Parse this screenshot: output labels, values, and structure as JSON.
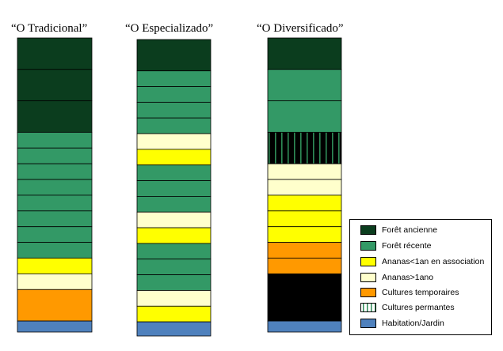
{
  "colors": {
    "foret_ancienne": "#0b3d1e",
    "foret_recente": "#339966",
    "ananas_assoc": "#ffff00",
    "ananas_1ano": "#ffffcc",
    "cultures_temporaires": "#ff9900",
    "cultures_permanentes": "#000000",
    "habitation": "#4f81bd"
  },
  "columns": [
    {
      "title": "“O Tradicional”",
      "blocks": [
        {
          "type": "foret_ancienne",
          "units": 2.0
        },
        {
          "type": "foret_ancienne",
          "units": 2.0
        },
        {
          "type": "foret_ancienne",
          "units": 2.0
        },
        {
          "type": "foret_recente",
          "units": 1.0
        },
        {
          "type": "foret_recente",
          "units": 1.0
        },
        {
          "type": "foret_recente",
          "units": 1.0
        },
        {
          "type": "foret_recente",
          "units": 1.0
        },
        {
          "type": "foret_recente",
          "units": 1.0
        },
        {
          "type": "foret_recente",
          "units": 1.0
        },
        {
          "type": "foret_recente",
          "units": 1.0
        },
        {
          "type": "foret_recente",
          "units": 1.0
        },
        {
          "type": "ananas_assoc",
          "units": 1.0
        },
        {
          "type": "ananas_1ano",
          "units": 1.0
        },
        {
          "type": "cultures_temporaires",
          "units": 2.0
        },
        {
          "type": "habitation",
          "units": 0.7
        }
      ]
    },
    {
      "title": "“O Especializado”",
      "blocks": [
        {
          "type": "foret_ancienne",
          "units": 2.0
        },
        {
          "type": "foret_recente",
          "units": 1.0
        },
        {
          "type": "foret_recente",
          "units": 1.0
        },
        {
          "type": "foret_recente",
          "units": 1.0
        },
        {
          "type": "foret_recente",
          "units": 1.0
        },
        {
          "type": "ananas_1ano",
          "units": 1.0
        },
        {
          "type": "ananas_assoc",
          "units": 1.0
        },
        {
          "type": "foret_recente",
          "units": 1.0
        },
        {
          "type": "foret_recente",
          "units": 1.0
        },
        {
          "type": "foret_recente",
          "units": 1.0
        },
        {
          "type": "ananas_1ano",
          "units": 1.0
        },
        {
          "type": "ananas_assoc",
          "units": 1.0
        },
        {
          "type": "foret_recente",
          "units": 1.0
        },
        {
          "type": "foret_recente",
          "units": 1.0
        },
        {
          "type": "foret_recente",
          "units": 1.0
        },
        {
          "type": "ananas_1ano",
          "units": 1.0
        },
        {
          "type": "ananas_assoc",
          "units": 1.0
        },
        {
          "type": "habitation",
          "units": 0.9
        }
      ]
    },
    {
      "title": "“O Diversificado”",
      "blocks": [
        {
          "type": "foret_ancienne",
          "units": 2.0
        },
        {
          "type": "foret_recente",
          "units": 2.0
        },
        {
          "type": "foret_recente",
          "units": 2.0
        },
        {
          "type": "cultures_permanentes",
          "units": 2.0
        },
        {
          "type": "ananas_1ano",
          "units": 1.0
        },
        {
          "type": "ananas_1ano",
          "units": 1.0
        },
        {
          "type": "ananas_assoc",
          "units": 1.0
        },
        {
          "type": "ananas_assoc",
          "units": 1.0
        },
        {
          "type": "ananas_assoc",
          "units": 1.0
        },
        {
          "type": "cultures_temporaires",
          "units": 1.0
        },
        {
          "type": "cultures_temporaires",
          "units": 1.0
        },
        {
          "type": "cultures_permanentes",
          "units": 3.0
        },
        {
          "type": "habitation",
          "units": 0.7
        }
      ]
    }
  ],
  "legend": [
    {
      "type": "foret_ancienne",
      "label": "Forêt ancienne"
    },
    {
      "type": "foret_recente",
      "label": "Forêt récente"
    },
    {
      "type": "ananas_assoc",
      "label": "Ananas<1an en association"
    },
    {
      "type": "ananas_1ano",
      "label": "Ananas>1ano"
    },
    {
      "type": "cultures_temporaires",
      "label": "Cultures temporaires"
    },
    {
      "type": "cultures_permanentes_stripes",
      "label": "Cultures permantes"
    },
    {
      "type": "habitation",
      "label": "Habitation/Jardin"
    }
  ]
}
